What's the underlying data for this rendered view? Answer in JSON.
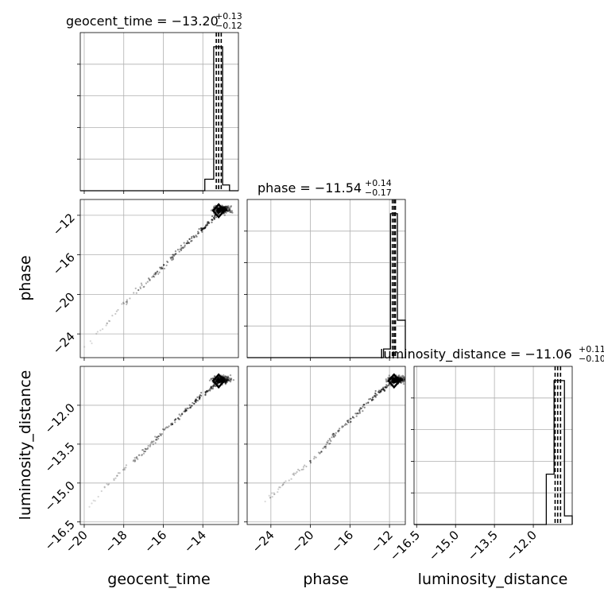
{
  "chart_data": {
    "type": "corner",
    "parameters": [
      {
        "key": "geocent_time",
        "label": "geocent_time",
        "title": {
          "prefix": "geocent_time = ",
          "value": "−13.20",
          "sup": "+0.13",
          "sub": "−0.12"
        },
        "range": [
          -20.2,
          -12.2
        ],
        "ticks": [
          -20,
          -18,
          -16,
          -14
        ],
        "tick_labels": [
          "−20",
          "−18",
          "−16",
          "−14"
        ],
        "quantiles": [
          -13.32,
          -13.2,
          -13.07
        ],
        "hist_edges": [
          -13.9,
          -13.45,
          -13.0,
          -12.65,
          -12.2
        ],
        "hist_counts": [
          0.08,
          1.0,
          0.04,
          0.0
        ]
      },
      {
        "key": "phase",
        "label": "phase",
        "title": {
          "prefix": "phase = ",
          "value": "−11.54",
          "sup": "+0.14",
          "sub": "−0.17"
        },
        "range": [
          -26.4,
          -10.4
        ],
        "ticks": [
          -24,
          -20,
          -16,
          -12
        ],
        "tick_labels": [
          "−24",
          "−20",
          "−16",
          "−12"
        ],
        "quantiles": [
          -11.71,
          -11.54,
          -11.4
        ],
        "hist_edges": [
          -12.6,
          -11.9,
          -11.2,
          -10.4
        ],
        "hist_counts": [
          0.06,
          1.0,
          0.26
        ]
      },
      {
        "key": "luminosity_distance",
        "label": "luminosity_distance",
        "title": {
          "prefix": "luminosity_distance = ",
          "value": "−11.06",
          "sup": "+0.11",
          "sub": "−0.10"
        },
        "range": [
          -16.6,
          -10.5
        ],
        "ticks": [
          -16.5,
          -15.0,
          -13.5,
          -12.0
        ],
        "tick_labels": [
          "−16.5",
          "−15.0",
          "−13.5",
          "−12.0"
        ],
        "quantiles": [
          -11.16,
          -11.06,
          -10.95
        ],
        "hist_edges": [
          -11.5,
          -11.2,
          -10.8,
          -10.5
        ],
        "hist_counts": [
          0.35,
          1.0,
          0.06
        ]
      }
    ],
    "y_ticks": {
      "phase": [
        -24,
        -20,
        -16,
        -12
      ],
      "phase_labels": [
        "−24",
        "−20",
        "−16",
        "−12"
      ],
      "luminosity_distance": [
        -16.5,
        -15.0,
        -13.5,
        -12.0
      ],
      "luminosity_distance_labels": [
        "−16.5",
        "−15.0",
        "−13.5",
        "−12.0"
      ]
    },
    "scatter_trend": {
      "geocent_time": [
        -20.0,
        -19.0,
        -18.0,
        -17.0,
        -16.0,
        -15.0,
        -14.0,
        -13.5,
        -13.2
      ],
      "phase": [
        -25.5,
        -23.2,
        -21.0,
        -19.0,
        -17.2,
        -15.2,
        -13.4,
        -12.4,
        -11.54
      ],
      "luminosity_distance": [
        -16.2,
        -15.2,
        -14.5,
        -13.8,
        -13.0,
        -12.3,
        -11.6,
        -11.3,
        -11.06
      ]
    },
    "grid": true,
    "contour_marker": "diamond at median"
  }
}
